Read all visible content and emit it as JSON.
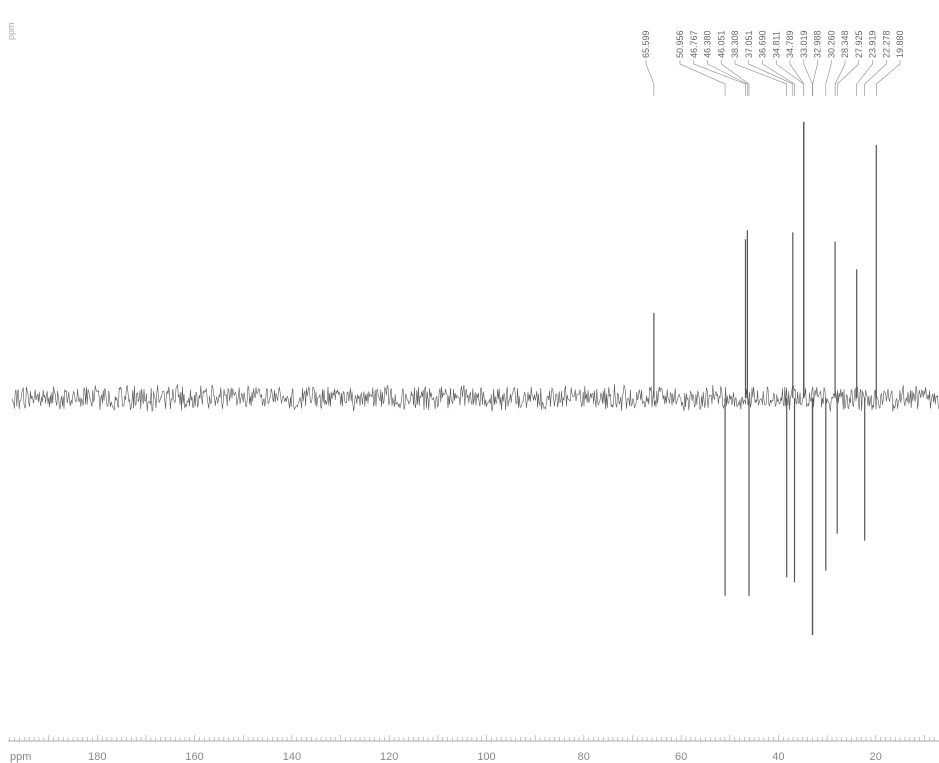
{
  "chart_data": {
    "type": "line",
    "title": "",
    "corner_label": "ppm",
    "xlabel": "ppm",
    "x_reversed": true,
    "xlim": [
      200,
      7
    ],
    "x_ticks": [
      180,
      160,
      140,
      120,
      100,
      80,
      60,
      40,
      20
    ],
    "color": "#555555",
    "peak_labels": [
      "65.599",
      "50.956",
      "46.767",
      "46.380",
      "46.051",
      "38.308",
      "37.051",
      "36.690",
      "34.811",
      "34.789",
      "33.019",
      "32.988",
      "30.260",
      "28.348",
      "27.925",
      "23.919",
      "22.278",
      "19.880"
    ],
    "peaks": [
      {
        "x": 65.599,
        "y": 0.37
      },
      {
        "x": 50.956,
        "y": -0.86
      },
      {
        "x": 46.767,
        "y": 0.69
      },
      {
        "x": 46.38,
        "y": 0.73
      },
      {
        "x": 46.051,
        "y": -0.86
      },
      {
        "x": 38.308,
        "y": -0.78
      },
      {
        "x": 37.051,
        "y": 0.72
      },
      {
        "x": 36.69,
        "y": -0.8
      },
      {
        "x": 34.811,
        "y": 1.2
      },
      {
        "x": 34.789,
        "y": 1.2
      },
      {
        "x": 33.019,
        "y": -1.03
      },
      {
        "x": 32.988,
        "y": -1.03
      },
      {
        "x": 30.26,
        "y": -0.75
      },
      {
        "x": 28.348,
        "y": 0.68
      },
      {
        "x": 27.925,
        "y": -0.59
      },
      {
        "x": 23.919,
        "y": 0.56
      },
      {
        "x": 22.278,
        "y": -0.62
      },
      {
        "x": 19.88,
        "y": 1.1
      }
    ]
  }
}
